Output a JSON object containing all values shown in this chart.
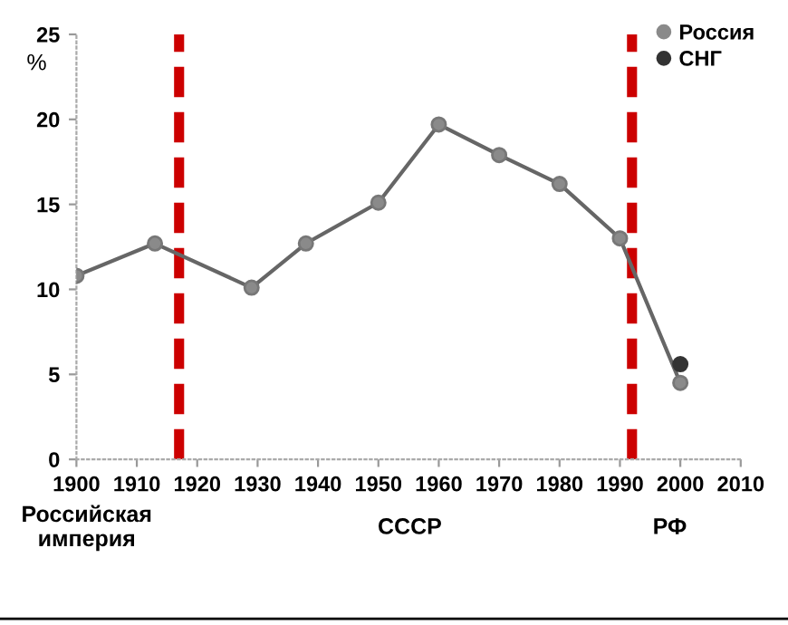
{
  "chart_data": {
    "type": "line",
    "ylabel": "%",
    "xlim": [
      1900,
      2010
    ],
    "xticks": [
      1900,
      1910,
      1920,
      1930,
      1940,
      1950,
      1960,
      1970,
      1980,
      1990,
      2000,
      2010
    ],
    "ylim": [
      0,
      25
    ],
    "yticks": [
      0,
      5,
      10,
      15,
      20,
      25
    ],
    "series": [
      {
        "name": "Россия",
        "color": "#8a8a8a",
        "x": [
          1900,
          1913,
          1929,
          1938,
          1950,
          1960,
          1970,
          1980,
          1990,
          2000
        ],
        "values": [
          10.8,
          12.7,
          10.1,
          12.7,
          15.1,
          19.7,
          17.9,
          16.2,
          13.0,
          4.5
        ]
      },
      {
        "name": "СНГ",
        "type": "scatter",
        "color": "#333333",
        "x": [
          2000
        ],
        "values": [
          5.6
        ]
      }
    ],
    "ref_lines": [
      {
        "axis": "x",
        "value": 1917,
        "label": null,
        "color": "#cc0000",
        "line_style": "dashed"
      },
      {
        "axis": "x",
        "value": 1992,
        "label": null,
        "color": "#cc0000",
        "line_style": "dashed"
      }
    ],
    "annotations": [
      "Российская империя",
      "СССР",
      "РФ"
    ],
    "marker": "circle",
    "grid": false,
    "legend": "top right"
  }
}
